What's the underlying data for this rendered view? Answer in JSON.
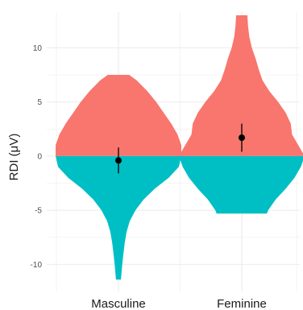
{
  "chart_data": {
    "type": "violin",
    "ylabel": "RDI (μV)",
    "ylim": [
      -12.5,
      13.3
    ],
    "yticks": [
      -10,
      -5,
      0,
      5,
      10
    ],
    "categories": [
      "Masculine",
      "Feminine"
    ],
    "colors": {
      "positive": "#f8766d",
      "negative": "#00bfc4",
      "grid": "#ebebeb",
      "point": "#000000"
    },
    "groups": [
      {
        "name": "Masculine",
        "mean": -0.4,
        "ci": [
          -1.6,
          0.8
        ],
        "max": 7.5,
        "min": -11.4,
        "profile": [
          [
            7.5,
            0.17
          ],
          [
            7.0,
            0.29
          ],
          [
            6.0,
            0.46
          ],
          [
            5.0,
            0.6
          ],
          [
            4.0,
            0.72
          ],
          [
            3.0,
            0.84
          ],
          [
            2.0,
            0.94
          ],
          [
            1.0,
            1.0
          ],
          [
            0.0,
            1.0
          ],
          [
            -1.0,
            0.96
          ],
          [
            -2.0,
            0.8
          ],
          [
            -3.0,
            0.58
          ],
          [
            -4.0,
            0.4
          ],
          [
            -5.0,
            0.27
          ],
          [
            -6.0,
            0.18
          ],
          [
            -7.0,
            0.13
          ],
          [
            -8.0,
            0.1
          ],
          [
            -9.0,
            0.08
          ],
          [
            -10.0,
            0.06
          ],
          [
            -10.7,
            0.05
          ],
          [
            -11.4,
            0.04
          ]
        ]
      },
      {
        "name": "Feminine",
        "mean": 1.7,
        "ci": [
          0.4,
          3.0
        ],
        "max": 13.0,
        "min": -5.3,
        "profile": [
          [
            13.0,
            0.09
          ],
          [
            12.0,
            0.1
          ],
          [
            11.0,
            0.12
          ],
          [
            10.0,
            0.16
          ],
          [
            9.0,
            0.22
          ],
          [
            8.0,
            0.27
          ],
          [
            7.0,
            0.33
          ],
          [
            6.0,
            0.44
          ],
          [
            5.0,
            0.58
          ],
          [
            4.0,
            0.7
          ],
          [
            3.0,
            0.78
          ],
          [
            2.0,
            0.8
          ],
          [
            1.0,
            0.9
          ],
          [
            0.0,
            1.0
          ],
          [
            -1.0,
            0.94
          ],
          [
            -2.0,
            0.84
          ],
          [
            -3.0,
            0.7
          ],
          [
            -4.0,
            0.54
          ],
          [
            -5.0,
            0.42
          ],
          [
            -5.3,
            0.4
          ]
        ]
      }
    ]
  }
}
